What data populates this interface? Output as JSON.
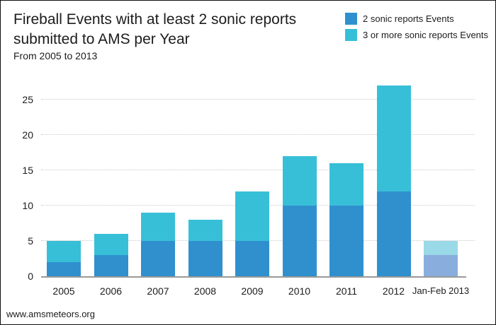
{
  "header": {
    "title_line1": "Fireball Events with at least 2 sonic reports",
    "title_line2": "submitted to AMS per Year",
    "subtitle": "From 2005 to 2013"
  },
  "legend": [
    {
      "label": "2 sonic reports Events",
      "color": "#3090ce",
      "icon": "square-swatch"
    },
    {
      "label": "3 or more sonic reports Events",
      "color": "#38bfd8",
      "icon": "square-swatch"
    }
  ],
  "footer": {
    "website": "www.amsmeteors.org"
  },
  "colors": {
    "series1": "#3090ce",
    "series2": "#38bfd8",
    "series1_muted": "#89aedd",
    "series2_muted": "#9ad9e8",
    "gridline": "#c9c9c9",
    "axis_line": "#9a9a9a",
    "text": "#1c1c1c"
  },
  "chart_data": {
    "type": "bar",
    "stacked": true,
    "title": "Fireball Events with at least 2 sonic reports submitted to AMS per Year",
    "subtitle": "From 2005 to 2013",
    "xlabel": "",
    "ylabel": "",
    "categories": [
      "2005",
      "2006",
      "2007",
      "2008",
      "2009",
      "2010",
      "2011",
      "2012",
      "Jan-Feb 2013"
    ],
    "series": [
      {
        "name": "2 sonic reports Events",
        "color": "#3090ce",
        "muted_color": "#89aedd",
        "values": [
          2,
          3,
          5,
          5,
          5,
          10,
          10,
          12,
          3
        ]
      },
      {
        "name": "3 or more sonic reports Events",
        "color": "#38bfd8",
        "muted_color": "#9ad9e8",
        "values": [
          3,
          3,
          4,
          3,
          7,
          7,
          6,
          15,
          2
        ]
      }
    ],
    "totals": [
      5,
      6,
      9,
      8,
      12,
      17,
      16,
      27,
      5
    ],
    "muted_categories": [
      "Jan-Feb 2013"
    ],
    "yticks": [
      0,
      5,
      10,
      15,
      20,
      25
    ],
    "ylim": [
      0,
      28
    ],
    "grid": "horizontal-dotted",
    "legend_position": "top-right"
  }
}
